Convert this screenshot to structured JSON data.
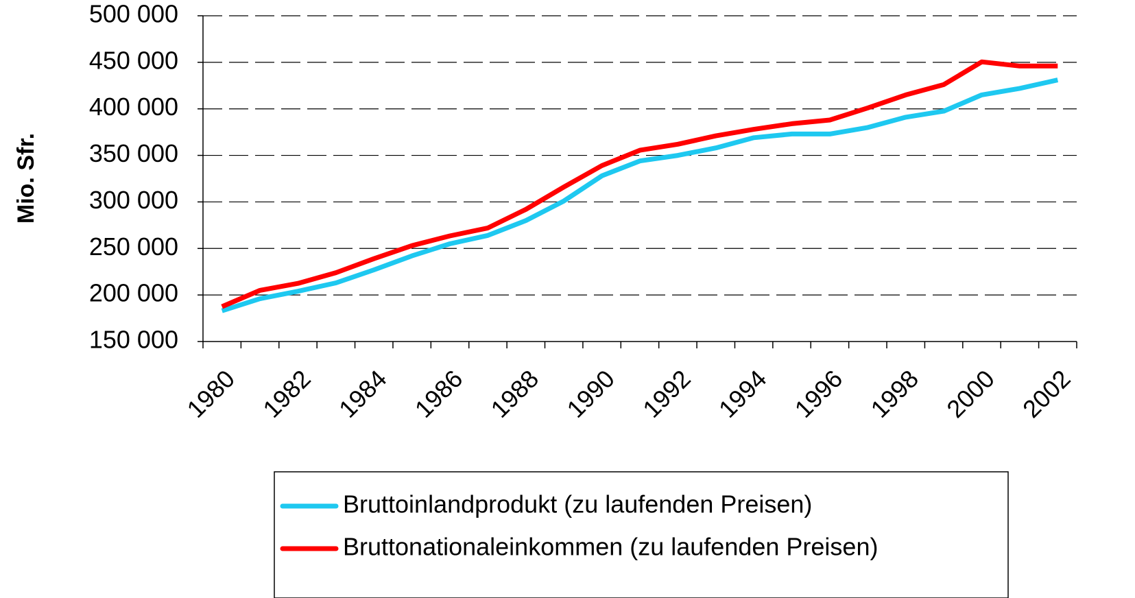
{
  "chart_data": {
    "type": "line",
    "y_label": "Mio. Sfr.",
    "categories": [
      "1980",
      null,
      "1982",
      null,
      "1984",
      null,
      "1986",
      null,
      "1988",
      null,
      "1990",
      null,
      "1992",
      null,
      "1994",
      null,
      "1996",
      null,
      "1998",
      null,
      "2000",
      null,
      "2002"
    ],
    "series": [
      {
        "name": "Bruttoinlandprodukt (zu laufenden Preisen)",
        "color": "#1ec8f0",
        "values": [
          183000,
          196000,
          204000,
          213000,
          227000,
          242000,
          255000,
          264000,
          280000,
          301000,
          328000,
          344000,
          350000,
          358000,
          369000,
          373000,
          373000,
          380000,
          391000,
          397500,
          415000,
          422000,
          431000
        ]
      },
      {
        "name": "Bruttonationaleinkommen (zu laufenden Preisen)",
        "color": "#ff0000",
        "values": [
          187500,
          205000,
          212500,
          224000,
          239000,
          253000,
          263500,
          272000,
          292000,
          316000,
          339000,
          355500,
          362000,
          371000,
          378000,
          384000,
          388000,
          401000,
          415000,
          426000,
          450500,
          446000,
          446000
        ]
      }
    ],
    "ylim": [
      150000,
      500000
    ],
    "yticks": [
      {
        "value": 150000,
        "label": "150 000"
      },
      {
        "value": 200000,
        "label": "200 000"
      },
      {
        "value": 250000,
        "label": "250 000"
      },
      {
        "value": 300000,
        "label": "300 000"
      },
      {
        "value": 350000,
        "label": "350 000"
      },
      {
        "value": 400000,
        "label": "400 000"
      },
      {
        "value": 450000,
        "label": "450 000"
      },
      {
        "value": 500000,
        "label": "500 000"
      }
    ],
    "grid": true,
    "legend": "bottom"
  }
}
